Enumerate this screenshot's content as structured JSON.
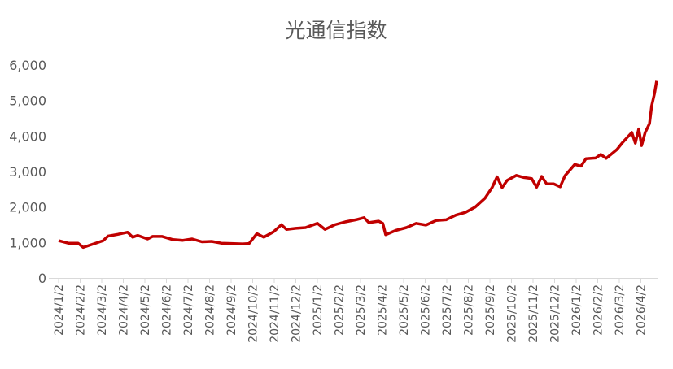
{
  "chart_data": {
    "type": "line",
    "title": "光通信指数",
    "xlabel": "",
    "ylabel": "",
    "ylim": [
      0,
      6000
    ],
    "yticks": [
      "0",
      "1,000",
      "2,000",
      "3,000",
      "4,000",
      "5,000",
      "6,000"
    ],
    "xtick_labels": [
      "2024/1/2",
      "2024/2/2",
      "2024/3/2",
      "2024/4/2",
      "2024/5/2",
      "2024/6/2",
      "2024/7/2",
      "2024/8/2",
      "2024/9/2",
      "2024/10/2",
      "2024/11/2",
      "2024/12/2",
      "2025/1/2",
      "2025/2/2",
      "2025/3/2",
      "2025/4/2",
      "2025/5/2",
      "2025/6/2",
      "2025/7/2",
      "2025/8/2",
      "2025/9/2",
      "2025/10/2",
      "2025/11/2",
      "2025/12/2",
      "2026/1/2",
      "2026/2/2",
      "2026/3/2",
      "2026/4/2"
    ],
    "grid": false,
    "legend": "none",
    "line_color": "#C00000",
    "series": [
      {
        "x": [
          "2024/1/2",
          "2024/1/16",
          "2024/1/30",
          "2024/2/6",
          "2024/2/20",
          "2024/3/4",
          "2024/3/11",
          "2024/3/25",
          "2024/4/8",
          "2024/4/15",
          "2024/4/22",
          "2024/5/6",
          "2024/5/13",
          "2024/5/27",
          "2024/6/11",
          "2024/6/25",
          "2024/7/8",
          "2024/7/22",
          "2024/8/5",
          "2024/8/19",
          "2024/9/2",
          "2024/9/18",
          "2024/9/27",
          "2024/10/8",
          "2024/10/18",
          "2024/11/1",
          "2024/11/12",
          "2024/11/19",
          "2024/12/2",
          "2024/12/16",
          "2025/1/2",
          "2025/1/13",
          "2025/1/27",
          "2025/2/10",
          "2025/2/24",
          "2025/3/7",
          "2025/3/14",
          "2025/3/28",
          "2025/4/3",
          "2025/4/7",
          "2025/4/21",
          "2025/5/6",
          "2025/5/20",
          "2025/6/3",
          "2025/6/17",
          "2025/7/1",
          "2025/7/15",
          "2025/7/29",
          "2025/8/12",
          "2025/8/26",
          "2025/9/5",
          "2025/9/12",
          "2025/9/19",
          "2025/9/26",
          "2025/10/9",
          "2025/10/20",
          "2025/10/31",
          "2025/11/7",
          "2025/11/14",
          "2025/11/21",
          "2025/12/1",
          "2025/12/10",
          "2025/12/17",
          "2025/12/31",
          "2026/1/9",
          "2026/1/16",
          "2026/1/30",
          "2026/2/6",
          "2026/2/13",
          "2026/2/27",
          "2026/3/6",
          "2026/3/13",
          "2026/3/20",
          "2026/3/25",
          "2026/3/30",
          "2026/4/3",
          "2026/4/8",
          "2026/4/14",
          "2026/4/17",
          "2026/4/21",
          "2026/4/24"
        ],
        "values": [
          1050,
          980,
          980,
          860,
          960,
          1050,
          1180,
          1230,
          1290,
          1150,
          1200,
          1100,
          1170,
          1170,
          1080,
          1060,
          1100,
          1020,
          1030,
          980,
          970,
          960,
          970,
          1250,
          1150,
          1300,
          1500,
          1370,
          1400,
          1420,
          1540,
          1370,
          1500,
          1580,
          1640,
          1700,
          1560,
          1600,
          1540,
          1220,
          1340,
          1420,
          1540,
          1490,
          1620,
          1640,
          1770,
          1850,
          2000,
          2250,
          2550,
          2850,
          2550,
          2750,
          2890,
          2830,
          2800,
          2560,
          2860,
          2650,
          2650,
          2570,
          2880,
          3200,
          3150,
          3360,
          3380,
          3480,
          3370,
          3620,
          3800,
          3950,
          4100,
          3800,
          4200,
          3730,
          4100,
          4350,
          4850,
          5200,
          5550
        ]
      }
    ]
  }
}
